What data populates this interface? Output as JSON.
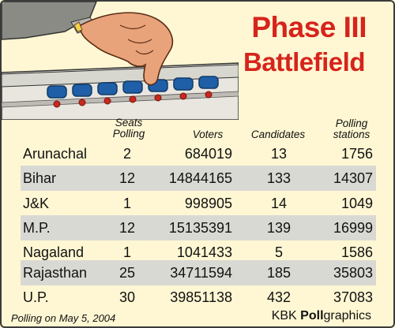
{
  "title_line1": "Phase III",
  "title_line2": "Battlefield",
  "columns": {
    "seats": "Seats Polling",
    "voters": "Voters",
    "candidates": "Candidates",
    "polling": "Polling stations"
  },
  "chart_data": {
    "type": "table",
    "title": "Phase III Battlefield",
    "columns": [
      "Seats Polling",
      "Voters",
      "Candidates",
      "Polling stations"
    ],
    "rows": [
      {
        "state": "Arunachal",
        "seats": 2,
        "voters": 684019,
        "candidates": 13,
        "polling": 1756
      },
      {
        "state": "Bihar",
        "seats": 12,
        "voters": 14844165,
        "candidates": 133,
        "polling": 14307
      },
      {
        "state": "J&K",
        "seats": 1,
        "voters": 998905,
        "candidates": 14,
        "polling": 1049
      },
      {
        "state": "M.P.",
        "seats": 12,
        "voters": 15135391,
        "candidates": 139,
        "polling": 16999
      },
      {
        "state": "Nagaland",
        "seats": 1,
        "voters": 1041433,
        "candidates": 5,
        "polling": 1586
      },
      {
        "state": "Rajasthan",
        "seats": 25,
        "voters": 34711594,
        "candidates": 185,
        "polling": 35803
      },
      {
        "state": "U.P.",
        "seats": 30,
        "voters": 39851138,
        "candidates": 432,
        "polling": 37083
      }
    ]
  },
  "footnote": "Polling on May 5, 2004",
  "credit_prefix": "KBK ",
  "credit_bold": "Poll",
  "credit_suffix": "graphics",
  "colors": {
    "title": "#d6241c",
    "background": "#fff7d3",
    "row_shade": "#d9d9d4",
    "button_blue": "#1f5fa8",
    "button_red": "#c8281e"
  }
}
